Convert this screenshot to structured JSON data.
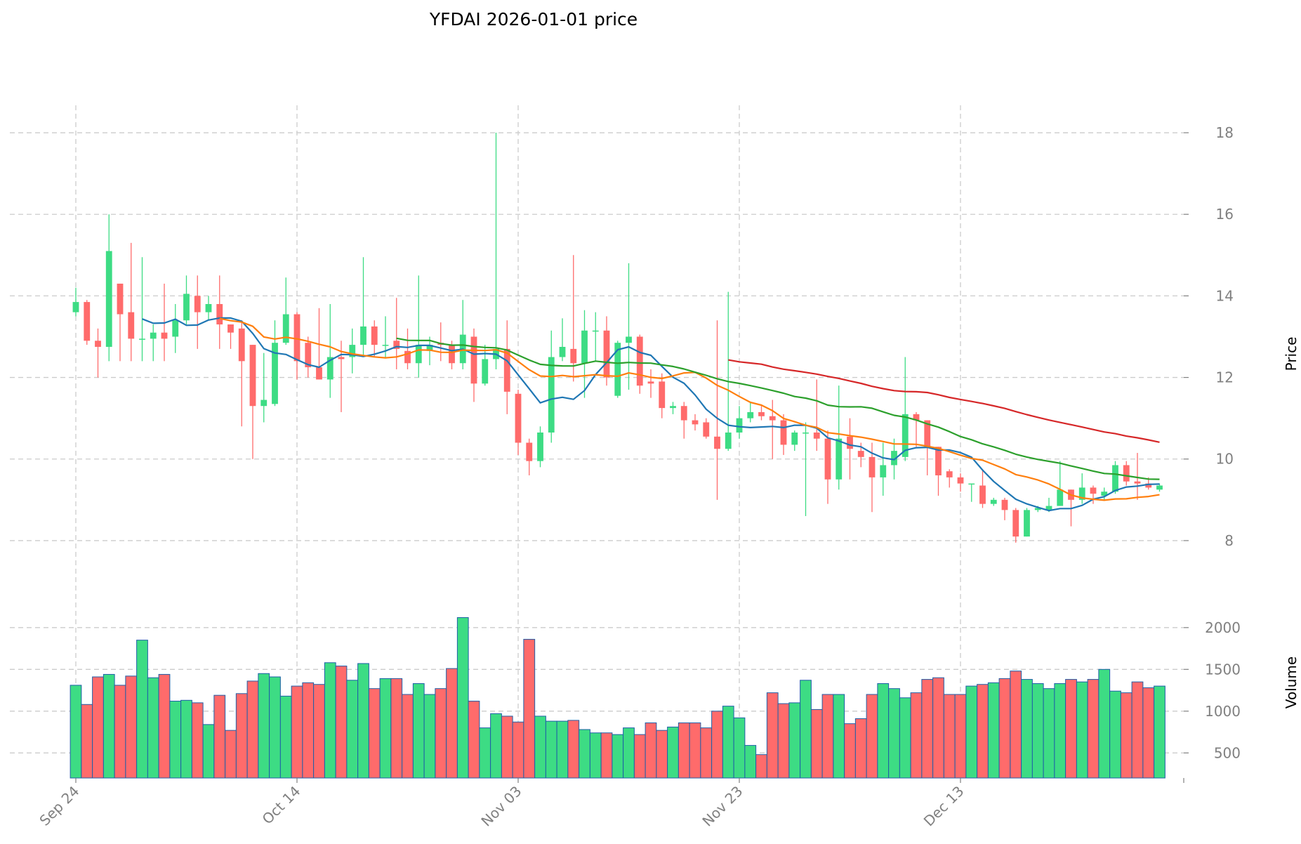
{
  "chart_data": {
    "type": "candlestick",
    "title": "YFDAI  2026-01-01  price",
    "price_axis": {
      "label": "Price",
      "ylim": [
        7.0,
        18.5
      ],
      "ticks": [
        8,
        10,
        12,
        14,
        16,
        18
      ]
    },
    "volume_axis": {
      "label": "Volume",
      "ylim": [
        200,
        2200
      ],
      "ticks": [
        500,
        1000,
        1500,
        2000
      ]
    },
    "x_ticks": [
      {
        "label": "Sep 24",
        "index": 0
      },
      {
        "label": "Oct 14",
        "index": 20
      },
      {
        "label": "Nov 03",
        "index": 40
      },
      {
        "label": "Nov 23",
        "index": 60
      },
      {
        "label": "Dec 13",
        "index": 80
      }
    ],
    "up_color": "#3ddc84",
    "down_color": "#ff6b6b",
    "ma_series": [
      {
        "name": "MA7",
        "period": 7,
        "color": "#1f77b4"
      },
      {
        "name": "MA14",
        "period": 14,
        "color": "#ff7f0e"
      },
      {
        "name": "MA30",
        "period": 30,
        "color": "#2ca02c"
      },
      {
        "name": "MA60",
        "period": 60,
        "color": "#d62728"
      }
    ],
    "candles": [
      [
        13.6,
        13.85,
        14.2,
        13.5,
        1310
      ],
      [
        13.85,
        12.9,
        13.9,
        12.8,
        1080
      ],
      [
        12.9,
        12.75,
        13.2,
        12.0,
        1410
      ],
      [
        12.75,
        15.1,
        16.0,
        12.4,
        1440
      ],
      [
        14.3,
        13.55,
        14.3,
        12.4,
        1310
      ],
      [
        13.6,
        12.95,
        15.3,
        12.4,
        1420
      ],
      [
        12.95,
        12.95,
        14.95,
        12.4,
        1850
      ],
      [
        12.95,
        13.1,
        13.3,
        12.4,
        1400
      ],
      [
        13.1,
        12.95,
        14.3,
        12.4,
        1440
      ],
      [
        13.0,
        13.4,
        13.8,
        12.6,
        1120
      ],
      [
        13.4,
        14.05,
        14.5,
        13.3,
        1130
      ],
      [
        14.0,
        13.6,
        14.5,
        12.7,
        1100
      ],
      [
        13.6,
        13.8,
        14.0,
        13.4,
        840
      ],
      [
        13.8,
        13.3,
        14.5,
        12.7,
        1190
      ],
      [
        13.3,
        13.1,
        13.3,
        12.7,
        770
      ],
      [
        13.2,
        12.4,
        13.4,
        10.8,
        1210
      ],
      [
        12.8,
        11.3,
        12.8,
        10.0,
        1360
      ],
      [
        11.3,
        11.45,
        12.6,
        10.9,
        1450
      ],
      [
        11.35,
        12.85,
        13.4,
        11.3,
        1410
      ],
      [
        12.85,
        13.55,
        14.45,
        12.8,
        1180
      ],
      [
        13.55,
        12.4,
        13.6,
        11.95,
        1300
      ],
      [
        12.85,
        12.25,
        13.0,
        12.0,
        1340
      ],
      [
        12.25,
        11.95,
        13.7,
        11.95,
        1320
      ],
      [
        11.95,
        12.5,
        13.8,
        11.5,
        1580
      ],
      [
        12.5,
        12.45,
        12.9,
        11.15,
        1540
      ],
      [
        12.5,
        12.8,
        13.2,
        12.1,
        1370
      ],
      [
        12.8,
        13.25,
        14.95,
        12.5,
        1570
      ],
      [
        13.25,
        12.8,
        13.4,
        12.5,
        1270
      ],
      [
        12.8,
        12.8,
        13.5,
        12.5,
        1390
      ],
      [
        12.9,
        12.7,
        13.95,
        12.2,
        1390
      ],
      [
        12.65,
        12.35,
        13.2,
        12.2,
        1200
      ],
      [
        12.35,
        12.8,
        14.5,
        12.0,
        1330
      ],
      [
        12.65,
        12.8,
        13.0,
        12.3,
        1200
      ],
      [
        12.85,
        12.8,
        13.35,
        12.4,
        1270
      ],
      [
        12.8,
        12.35,
        12.9,
        12.2,
        1510
      ],
      [
        12.35,
        13.05,
        13.9,
        12.2,
        2120
      ],
      [
        13.0,
        11.85,
        13.2,
        11.4,
        1120
      ],
      [
        11.85,
        12.45,
        12.8,
        11.8,
        800
      ],
      [
        12.45,
        12.7,
        18.0,
        12.2,
        970
      ],
      [
        12.7,
        11.65,
        13.4,
        11.1,
        940
      ],
      [
        11.6,
        10.4,
        11.7,
        10.1,
        870
      ],
      [
        10.4,
        9.95,
        10.5,
        9.6,
        1860
      ],
      [
        9.95,
        10.65,
        10.8,
        9.8,
        940
      ],
      [
        10.65,
        12.5,
        13.15,
        10.4,
        880
      ],
      [
        12.5,
        12.75,
        13.45,
        12.4,
        880
      ],
      [
        12.7,
        12.35,
        15.0,
        11.9,
        890
      ],
      [
        12.35,
        13.15,
        13.65,
        11.5,
        780
      ],
      [
        13.15,
        13.15,
        13.6,
        12.4,
        740
      ],
      [
        13.15,
        12.0,
        13.5,
        11.8,
        740
      ],
      [
        11.55,
        12.85,
        12.9,
        11.5,
        720
      ],
      [
        12.85,
        13.0,
        14.8,
        11.7,
        800
      ],
      [
        13.0,
        11.8,
        13.05,
        11.6,
        720
      ],
      [
        11.9,
        11.85,
        12.2,
        11.5,
        860
      ],
      [
        11.9,
        11.25,
        12.1,
        11.0,
        770
      ],
      [
        11.25,
        11.3,
        11.4,
        11.1,
        810
      ],
      [
        11.3,
        10.95,
        11.4,
        10.5,
        860
      ],
      [
        10.95,
        10.85,
        11.1,
        10.7,
        860
      ],
      [
        10.9,
        10.55,
        11.0,
        10.5,
        800
      ],
      [
        10.55,
        10.25,
        13.4,
        9.0,
        1000
      ],
      [
        10.25,
        10.65,
        14.1,
        10.2,
        1060
      ],
      [
        10.65,
        11.0,
        11.3,
        10.5,
        920
      ],
      [
        11.0,
        11.15,
        11.4,
        10.9,
        590
      ],
      [
        11.15,
        11.05,
        11.3,
        10.95,
        480
      ],
      [
        11.05,
        10.95,
        11.45,
        10.0,
        1220
      ],
      [
        10.95,
        10.35,
        11.1,
        10.1,
        1090
      ],
      [
        10.35,
        10.65,
        10.7,
        10.2,
        1100
      ],
      [
        10.65,
        10.65,
        10.9,
        8.6,
        1370
      ],
      [
        10.65,
        10.5,
        11.95,
        10.2,
        1020
      ],
      [
        10.5,
        9.5,
        10.7,
        8.9,
        1200
      ],
      [
        9.5,
        10.5,
        11.8,
        9.25,
        1200
      ],
      [
        10.55,
        10.25,
        11.0,
        9.5,
        850
      ],
      [
        10.2,
        10.05,
        10.4,
        9.8,
        910
      ],
      [
        10.05,
        9.55,
        10.4,
        8.7,
        1200
      ],
      [
        9.55,
        9.85,
        10.4,
        9.1,
        1330
      ],
      [
        9.85,
        10.2,
        10.5,
        9.5,
        1270
      ],
      [
        10.05,
        11.1,
        12.5,
        9.95,
        1160
      ],
      [
        11.1,
        10.95,
        11.15,
        10.3,
        1220
      ],
      [
        10.95,
        10.3,
        10.95,
        9.6,
        1380
      ],
      [
        10.3,
        9.6,
        10.3,
        9.1,
        1400
      ],
      [
        9.7,
        9.55,
        9.75,
        9.3,
        1200
      ],
      [
        9.55,
        9.4,
        9.65,
        9.2,
        1200
      ],
      [
        9.4,
        9.4,
        9.4,
        8.95,
        1300
      ],
      [
        9.35,
        8.9,
        9.75,
        8.8,
        1320
      ],
      [
        8.9,
        9.0,
        9.05,
        8.85,
        1340
      ],
      [
        9.0,
        8.75,
        9.05,
        8.5,
        1390
      ],
      [
        8.75,
        8.1,
        8.8,
        7.95,
        1480
      ],
      [
        8.1,
        8.75,
        8.8,
        8.1,
        1380
      ],
      [
        8.75,
        8.8,
        8.85,
        8.7,
        1330
      ],
      [
        8.75,
        8.85,
        9.05,
        8.7,
        1270
      ],
      [
        8.85,
        9.25,
        9.95,
        8.85,
        1330
      ],
      [
        9.25,
        9.0,
        9.25,
        8.35,
        1380
      ],
      [
        9.0,
        9.3,
        9.65,
        8.9,
        1350
      ],
      [
        9.3,
        9.15,
        9.35,
        8.9,
        1380
      ],
      [
        9.1,
        9.2,
        9.3,
        9.0,
        1500
      ],
      [
        9.2,
        9.85,
        9.95,
        9.15,
        1240
      ],
      [
        9.85,
        9.45,
        9.95,
        9.35,
        1220
      ],
      [
        9.45,
        9.4,
        10.15,
        9.0,
        1350
      ],
      [
        9.4,
        9.3,
        9.55,
        9.25,
        1280
      ],
      [
        9.25,
        9.35,
        9.4,
        9.2,
        1300
      ]
    ]
  }
}
